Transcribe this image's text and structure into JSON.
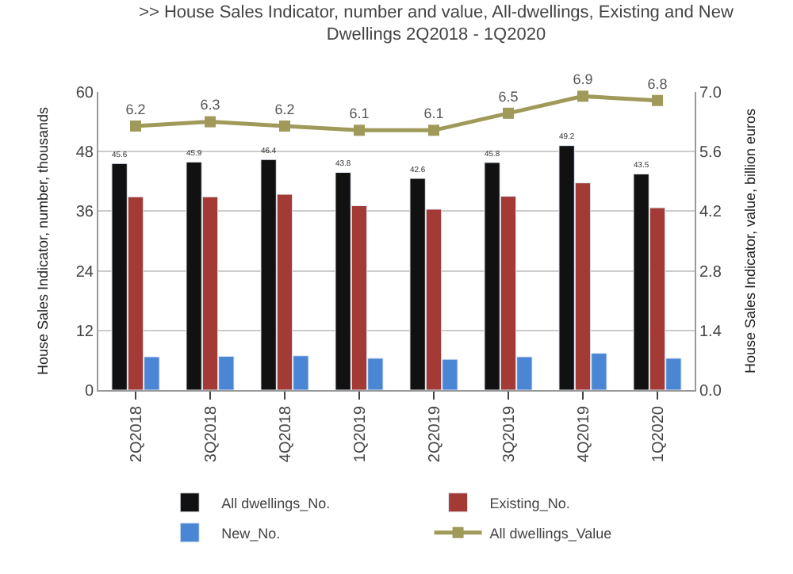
{
  "chart_data": {
    "type": "bar",
    "title": ">> House Sales Indicator, number and value, All-dwellings, Existing and New Dwellings 2Q2018 - 1Q2020",
    "ylabel": "House Sales Indicator, number, thousands",
    "y2label": "House Sales Indicator, value, billion euros",
    "categories": [
      "2Q2018",
      "3Q2018",
      "4Q2018",
      "1Q2019",
      "2Q2019",
      "3Q2019",
      "4Q2019",
      "1Q2020"
    ],
    "series": [
      {
        "name": "All dwellings_No.",
        "color": "#111111",
        "values": [
          45.6,
          45.9,
          46.4,
          43.8,
          42.6,
          45.8,
          49.2,
          43.5
        ],
        "value_labels": [
          "45.6",
          "45.9",
          "46.4",
          "43.8",
          "42.6",
          "45.8",
          "49.2",
          "43.5"
        ]
      },
      {
        "name": "Existing_No.",
        "color": "#a33a35",
        "values": [
          38.9,
          38.9,
          39.4,
          37.1,
          36.4,
          39.0,
          41.7,
          36.7
        ]
      },
      {
        "name": "New_No.",
        "color": "#4a86d4",
        "values": [
          6.7,
          6.8,
          6.9,
          6.4,
          6.2,
          6.7,
          7.4,
          6.4
        ]
      },
      {
        "name": "All dwellings_Value",
        "type": "line",
        "axis": "y2",
        "color": "#a09a5a",
        "marker": "square",
        "values": [
          6.2,
          6.3,
          6.2,
          6.1,
          6.1,
          6.5,
          6.9,
          6.8
        ],
        "value_labels": [
          "6.2",
          "6.3",
          "6.2",
          "6.1",
          "6.1",
          "6.5",
          "6.9",
          "6.8"
        ]
      }
    ],
    "ylim": [
      0,
      60
    ],
    "yticks": [
      0,
      12,
      24,
      36,
      48,
      60
    ],
    "y2lim": [
      0,
      7.0
    ],
    "y2ticks": [
      {
        "value": 0,
        "label": "0.0"
      },
      1.4,
      2.8,
      4.2,
      5.6,
      {
        "value": 7,
        "label": "7.0"
      }
    ],
    "grid": "y",
    "legend": "bottom"
  }
}
